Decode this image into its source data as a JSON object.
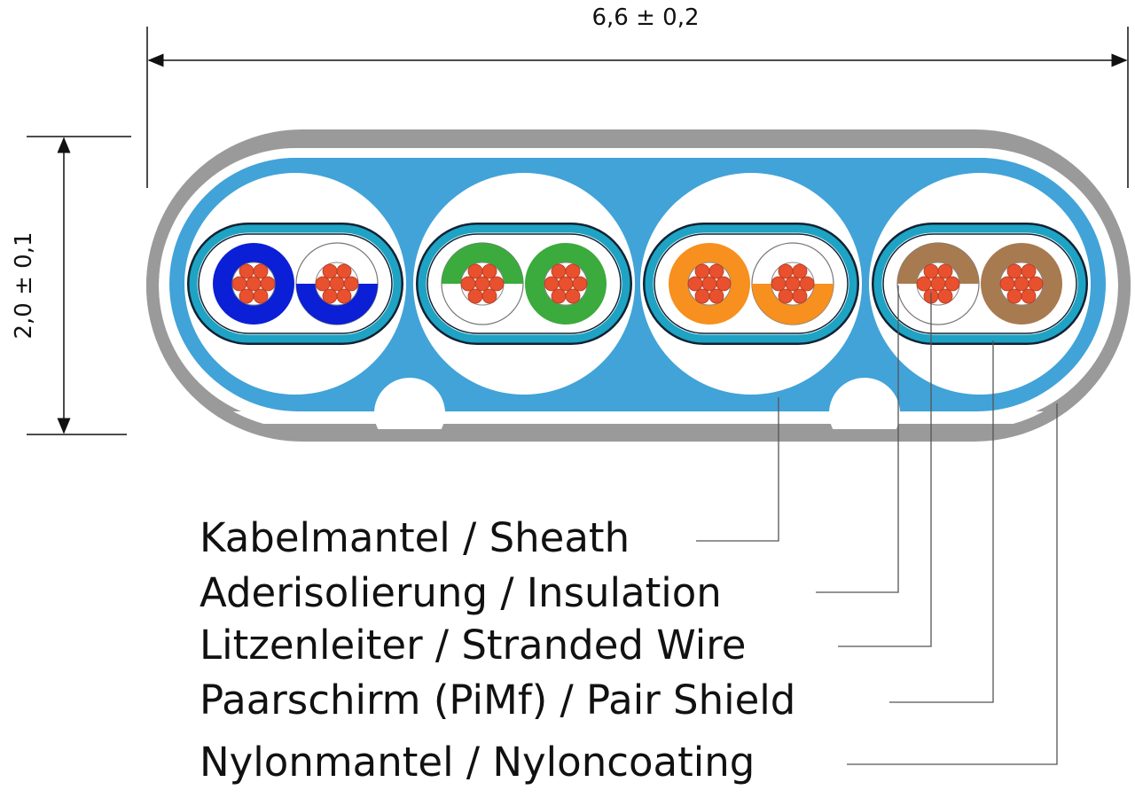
{
  "dimensions": {
    "width_label": "6,6 ± 0,2",
    "height_label": "2,0 ± 0,1"
  },
  "labels": [
    "Kabelmantel / Sheath",
    "Aderisolierung / Insulation",
    "Litzenleiter / Stranded Wire",
    "Paarschirm (PiMf) / Pair Shield",
    "Nylonmantel / Nyloncoating"
  ],
  "colors": {
    "sheath": "#41a3d8",
    "nylon_coating": "#9a9a9a",
    "pair_shield": "#1ea3c4",
    "conductor": "#e8502e"
  },
  "pairs": [
    {
      "color": "#0a1fd6",
      "striped_half": "bottom"
    },
    {
      "color": "#3aab3c",
      "striped_half": "top"
    },
    {
      "color": "#f7901e",
      "striped_half": "bottom"
    },
    {
      "color": "#a87a4f",
      "striped_half": "top"
    }
  ]
}
